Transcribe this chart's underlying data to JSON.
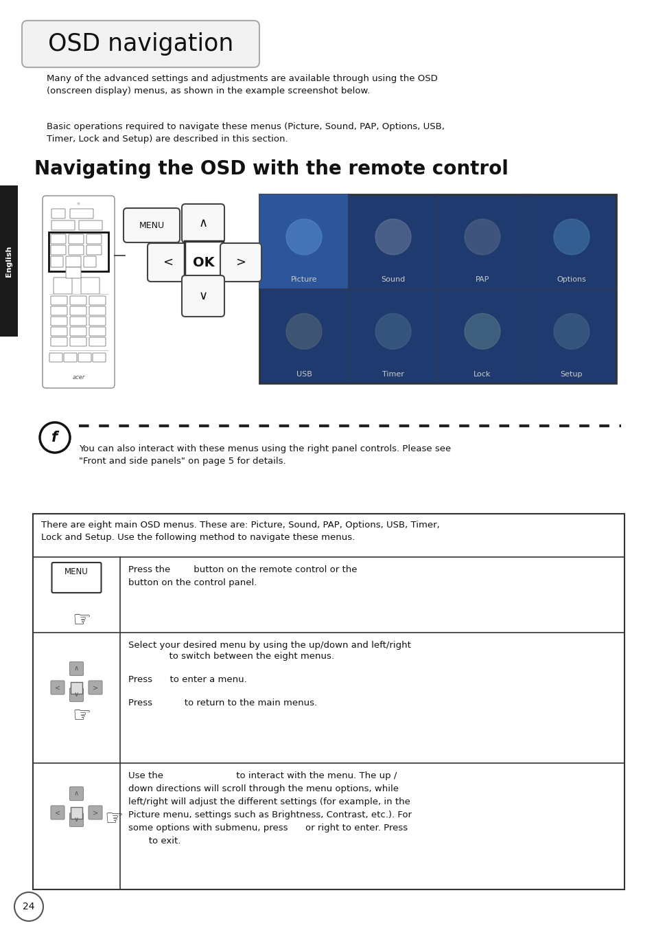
{
  "bg_color": "#ffffff",
  "title_text": "OSD navigation",
  "subtitle_text": "Navigating the OSD with the remote control",
  "para1": "Many of the advanced settings and adjustments are available through using the OSD\n(onscreen display) menus, as shown in the example screenshot below.",
  "para2": "Basic operations required to navigate these menus (Picture, Sound, PAP, Options, USB,\nTimer, Lock and Setup) are described in this section.",
  "note_text": "You can also interact with these menus using the right panel controls. Please see\n\"Front and side panels\" on page 5 for details.",
  "table_header": "There are eight main OSD menus. These are: Picture, Sound, PAP, Options, USB, Timer,\nLock and Setup. Use the following method to navigate these menus.",
  "row1_text": "Press the        button on the remote control or the\nbutton on the control panel.",
  "row2_line1": "Select your desired menu by using the up/down and left/right",
  "row2_line2": "              to switch between the eight menus.",
  "row2_line3": "Press      to enter a menu.",
  "row2_line4": "Press           to return to the main menus.",
  "row3_text": "Use the                         to interact with the menu. The up /\ndown directions will scroll through the menu options, while\nleft/right will adjust the different settings (for example, in the\nPicture menu, settings such as Brightness, Contrast, etc.). For\nsome options with submenu, press      or right to enter. Press\n       to exit.",
  "sidebar_color": "#1a1a1a",
  "sidebar_text": "English",
  "page_number": "24",
  "osd_top_labels": [
    "Picture",
    "Sound",
    "PAP",
    "Options"
  ],
  "osd_bot_labels": [
    "USB",
    "Timer",
    "Lock",
    "Setup"
  ]
}
